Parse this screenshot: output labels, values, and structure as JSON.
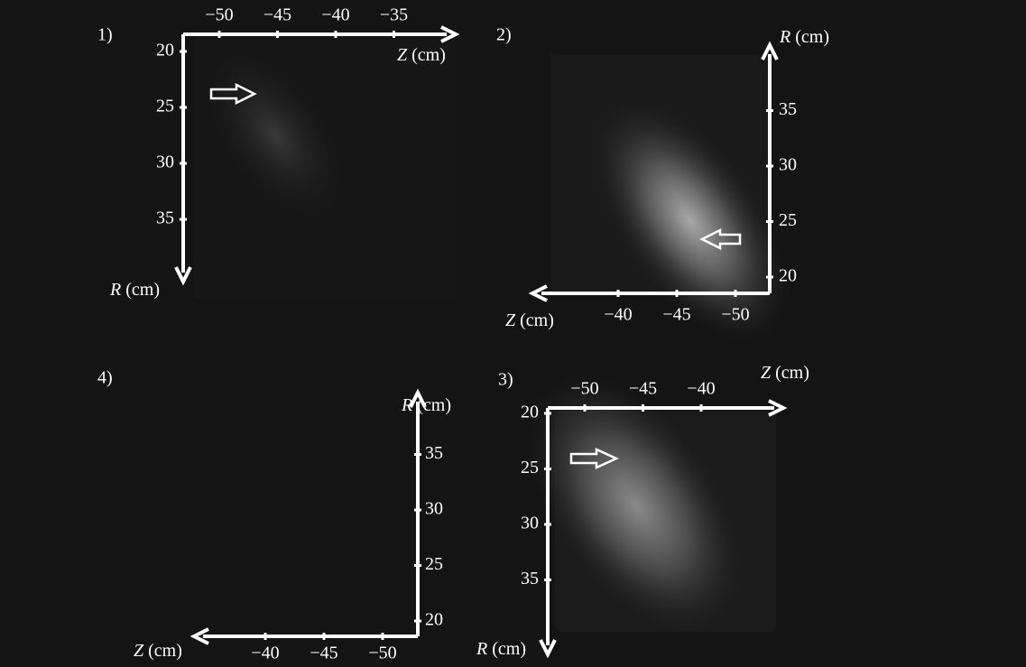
{
  "panels": [
    {
      "label": "1)",
      "z_axis": {
        "symbol": "Z",
        "unit": "(cm)",
        "ticks": [
          {
            "value": -50,
            "label": "−50"
          },
          {
            "value": -45,
            "label": "−45"
          },
          {
            "value": -40,
            "label": "−40"
          },
          {
            "value": -35,
            "label": "−35"
          }
        ]
      },
      "r_axis": {
        "symbol": "R",
        "unit": "(cm)",
        "ticks": [
          20,
          25,
          30,
          35
        ]
      }
    },
    {
      "label": "2)",
      "z_axis": {
        "symbol": "Z",
        "unit": "(cm)",
        "ticks": [
          {
            "value": -40,
            "label": "−40"
          },
          {
            "value": -45,
            "label": "−45"
          },
          {
            "value": -50,
            "label": "−50"
          }
        ]
      },
      "r_axis": {
        "symbol": "R",
        "unit": "(cm)",
        "ticks": [
          20,
          25,
          30,
          35
        ]
      }
    },
    {
      "label": "4)",
      "z_axis": {
        "symbol": "Z",
        "unit": "(cm)",
        "ticks": [
          {
            "value": -40,
            "label": "−40"
          },
          {
            "value": -45,
            "label": "−45"
          },
          {
            "value": -50,
            "label": "−50"
          }
        ]
      },
      "r_axis": {
        "symbol": "R",
        "unit": "(cm)",
        "ticks": [
          20,
          25,
          30,
          35
        ]
      }
    },
    {
      "label": "3)",
      "z_axis": {
        "symbol": "Z",
        "unit": "(cm)",
        "ticks": [
          {
            "value": -50,
            "label": "−50"
          },
          {
            "value": -45,
            "label": "−45"
          },
          {
            "value": -40,
            "label": "−40"
          }
        ]
      },
      "r_axis": {
        "symbol": "R",
        "unit": "(cm)",
        "ticks": [
          20,
          25,
          30,
          35
        ]
      }
    }
  ]
}
